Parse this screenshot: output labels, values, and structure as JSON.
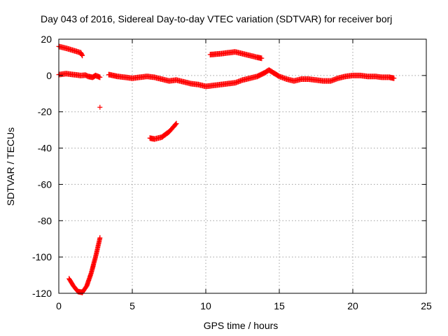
{
  "chart_data": {
    "type": "scatter",
    "title": "Day 043 of 2016, Sidereal Day-to-day VTEC variation (SDTVAR) for receiver borj",
    "xlabel": "GPS time / hours",
    "ylabel": "SDTVAR / TECUs",
    "xlim": [
      0,
      25
    ],
    "ylim": [
      -120,
      20
    ],
    "xticks": [
      "0",
      "5",
      "10",
      "15",
      "20",
      "25"
    ],
    "yticks": [
      "20",
      "0",
      "-20",
      "-40",
      "-60",
      "-80",
      "-100",
      "-120"
    ],
    "grid": true,
    "marker": "+",
    "color": "#ff0000",
    "series": [
      {
        "points": [
          [
            0.0,
            16.0
          ],
          [
            0.5,
            15.0
          ],
          [
            1.0,
            13.8
          ],
          [
            1.5,
            12.5
          ],
          [
            1.6,
            11.0
          ]
        ]
      },
      {
        "points": [
          [
            0.0,
            0.5
          ],
          [
            0.5,
            1.0
          ],
          [
            1.0,
            0.5
          ],
          [
            1.5,
            0.0
          ],
          [
            1.8,
            0.2
          ],
          [
            2.0,
            -0.5
          ],
          [
            2.3,
            -1.0
          ],
          [
            2.5,
            0.0
          ],
          [
            2.8,
            -1.0
          ]
        ]
      },
      {
        "points": [
          [
            3.4,
            0.5
          ],
          [
            4.0,
            -0.5
          ],
          [
            4.5,
            -1.0
          ],
          [
            5.0,
            -1.5
          ],
          [
            5.5,
            -1.0
          ],
          [
            6.0,
            -0.5
          ],
          [
            6.5,
            -1.0
          ],
          [
            7.0,
            -2.0
          ],
          [
            7.5,
            -3.0
          ],
          [
            8.0,
            -2.5
          ],
          [
            8.5,
            -3.5
          ],
          [
            9.0,
            -4.5
          ],
          [
            9.5,
            -5.0
          ],
          [
            10.0,
            -6.0
          ],
          [
            10.5,
            -5.5
          ],
          [
            11.0,
            -5.0
          ],
          [
            11.5,
            -4.5
          ],
          [
            12.0,
            -4.0
          ],
          [
            12.5,
            -2.5
          ],
          [
            13.0,
            -1.5
          ],
          [
            13.5,
            -0.5
          ],
          [
            14.0,
            1.5
          ],
          [
            14.3,
            3.0
          ],
          [
            14.6,
            1.5
          ],
          [
            15.0,
            -0.5
          ],
          [
            15.5,
            -2.0
          ],
          [
            16.0,
            -3.0
          ],
          [
            16.5,
            -2.0
          ],
          [
            17.0,
            -2.0
          ],
          [
            17.5,
            -2.5
          ],
          [
            18.0,
            -3.0
          ],
          [
            18.5,
            -3.0
          ],
          [
            19.0,
            -1.5
          ],
          [
            19.5,
            -0.5
          ],
          [
            20.0,
            0.0
          ],
          [
            20.5,
            0.0
          ],
          [
            21.0,
            -0.5
          ],
          [
            21.5,
            -0.5
          ],
          [
            22.0,
            -1.0
          ],
          [
            22.5,
            -1.0
          ],
          [
            22.8,
            -1.5
          ]
        ]
      },
      {
        "points": [
          [
            10.3,
            11.5
          ],
          [
            11.0,
            12.0
          ],
          [
            11.5,
            12.5
          ],
          [
            12.0,
            13.0
          ],
          [
            12.5,
            12.0
          ],
          [
            13.0,
            11.0
          ],
          [
            13.5,
            10.0
          ],
          [
            13.8,
            9.5
          ]
        ]
      },
      {
        "points": [
          [
            2.8,
            -17.5
          ]
        ]
      },
      {
        "points": [
          [
            6.2,
            -34.5
          ],
          [
            6.5,
            -35.0
          ],
          [
            7.0,
            -34.0
          ],
          [
            7.5,
            -31.0
          ],
          [
            8.0,
            -26.5
          ]
        ]
      },
      {
        "points": [
          [
            0.7,
            -112.0
          ],
          [
            1.0,
            -116.0
          ],
          [
            1.3,
            -119.0
          ],
          [
            1.6,
            -119.5
          ],
          [
            1.9,
            -116.0
          ],
          [
            2.2,
            -109.0
          ],
          [
            2.5,
            -100.0
          ],
          [
            2.8,
            -89.5
          ]
        ]
      }
    ]
  }
}
